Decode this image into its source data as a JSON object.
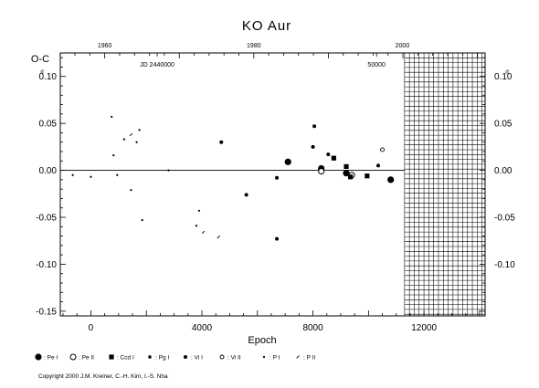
{
  "chart_data": {
    "type": "scatter",
    "title": "KO Aur",
    "xlabel": "Epoch",
    "ylabel": "O-C",
    "xlim": [
      -1100,
      14200
    ],
    "ylim": [
      -0.155,
      0.125
    ],
    "x_ticks": [
      {
        "v": 0,
        "label": "0"
      },
      {
        "v": 4000,
        "label": "4000"
      },
      {
        "v": 8000,
        "label": "8000"
      },
      {
        "v": 12000,
        "label": "12000"
      }
    ],
    "y_ticks_left": [
      {
        "v": 0.1,
        "label": "0.10",
        "unit_mark": "d"
      },
      {
        "v": 0.05,
        "label": "0.05"
      },
      {
        "v": 0.0,
        "label": "0.00"
      },
      {
        "v": -0.05,
        "label": "-0.05"
      },
      {
        "v": -0.1,
        "label": "-0.10"
      },
      {
        "v": -0.15,
        "label": "-0.15"
      }
    ],
    "y_ticks_right": [
      {
        "v": 0.1,
        "label": "0.10",
        "unit_mark": "d"
      },
      {
        "v": 0.05,
        "label": "0.05"
      },
      {
        "v": 0.0,
        "label": "0.00"
      },
      {
        "v": -0.05,
        "label": "-0.05"
      },
      {
        "v": -0.1,
        "label": "-0.10"
      }
    ],
    "top_axis": {
      "ticks": [
        {
          "epoch": 500,
          "label": "1960"
        },
        {
          "epoch": 5870,
          "label": "1980"
        },
        {
          "epoch": 11220,
          "label": "2000"
        }
      ],
      "jd_labels": [
        {
          "epoch": 2390,
          "label": "JD 2440000"
        },
        {
          "epoch": 10290,
          "label": "50000"
        }
      ]
    },
    "reference_line_y": 0,
    "future_region": {
      "x_start": 11300,
      "x_end": 14200
    },
    "legend": [
      {
        "marker": "pe1",
        "label": ": Pe I"
      },
      {
        "marker": "pe2",
        "label": ": Pe II"
      },
      {
        "marker": "ccd1",
        "label": ": Ccd I"
      },
      {
        "marker": "pg1",
        "label": ": Pg I"
      },
      {
        "marker": "vi1",
        "label": ": Vi I"
      },
      {
        "marker": "vi2",
        "label": ": Vi II"
      },
      {
        "marker": "p1",
        "label": ": P I"
      },
      {
        "marker": "p2",
        "label": ": P II"
      }
    ],
    "series": [
      {
        "marker": "p1",
        "points": [
          [
            -650,
            -0.005
          ],
          [
            0,
            -0.007
          ],
          [
            750,
            0.057
          ],
          [
            820,
            0.016
          ],
          [
            950,
            -0.005
          ],
          [
            1200,
            0.033
          ],
          [
            1450,
            -0.021
          ],
          [
            1650,
            0.03
          ],
          [
            1750,
            0.043
          ],
          [
            1850,
            -0.053
          ],
          [
            2800,
            0.0
          ],
          [
            3900,
            -0.043
          ],
          [
            3800,
            -0.059
          ]
        ]
      },
      {
        "marker": "p2",
        "points": [
          [
            1450,
            0.038
          ],
          [
            4050,
            -0.066
          ],
          [
            4600,
            -0.071
          ]
        ]
      },
      {
        "marker": "vi1",
        "points": [
          [
            4700,
            0.03
          ],
          [
            5600,
            -0.026
          ],
          [
            6700,
            -0.008
          ],
          [
            6700,
            -0.073
          ],
          [
            8000,
            0.025
          ],
          [
            8050,
            0.047
          ],
          [
            8550,
            0.017
          ],
          [
            10350,
            0.005
          ]
        ]
      },
      {
        "marker": "pe1",
        "points": [
          [
            7100,
            0.009
          ],
          [
            8300,
            0.002
          ],
          [
            9200,
            -0.003
          ],
          [
            10800,
            -0.01
          ]
        ]
      },
      {
        "marker": "pe2",
        "points": [
          [
            8300,
            -0.001
          ],
          [
            9400,
            -0.005
          ]
        ]
      },
      {
        "marker": "vi2",
        "points": [
          [
            10500,
            0.022
          ]
        ]
      },
      {
        "marker": "ccd1",
        "points": [
          [
            8750,
            0.013
          ],
          [
            9200,
            0.004
          ],
          [
            9350,
            -0.007
          ],
          [
            9950,
            -0.006
          ]
        ]
      }
    ]
  },
  "copyright": "Copyright 2000 J.M. Kreiner, C.-H. Kim, I.-S. Nha"
}
